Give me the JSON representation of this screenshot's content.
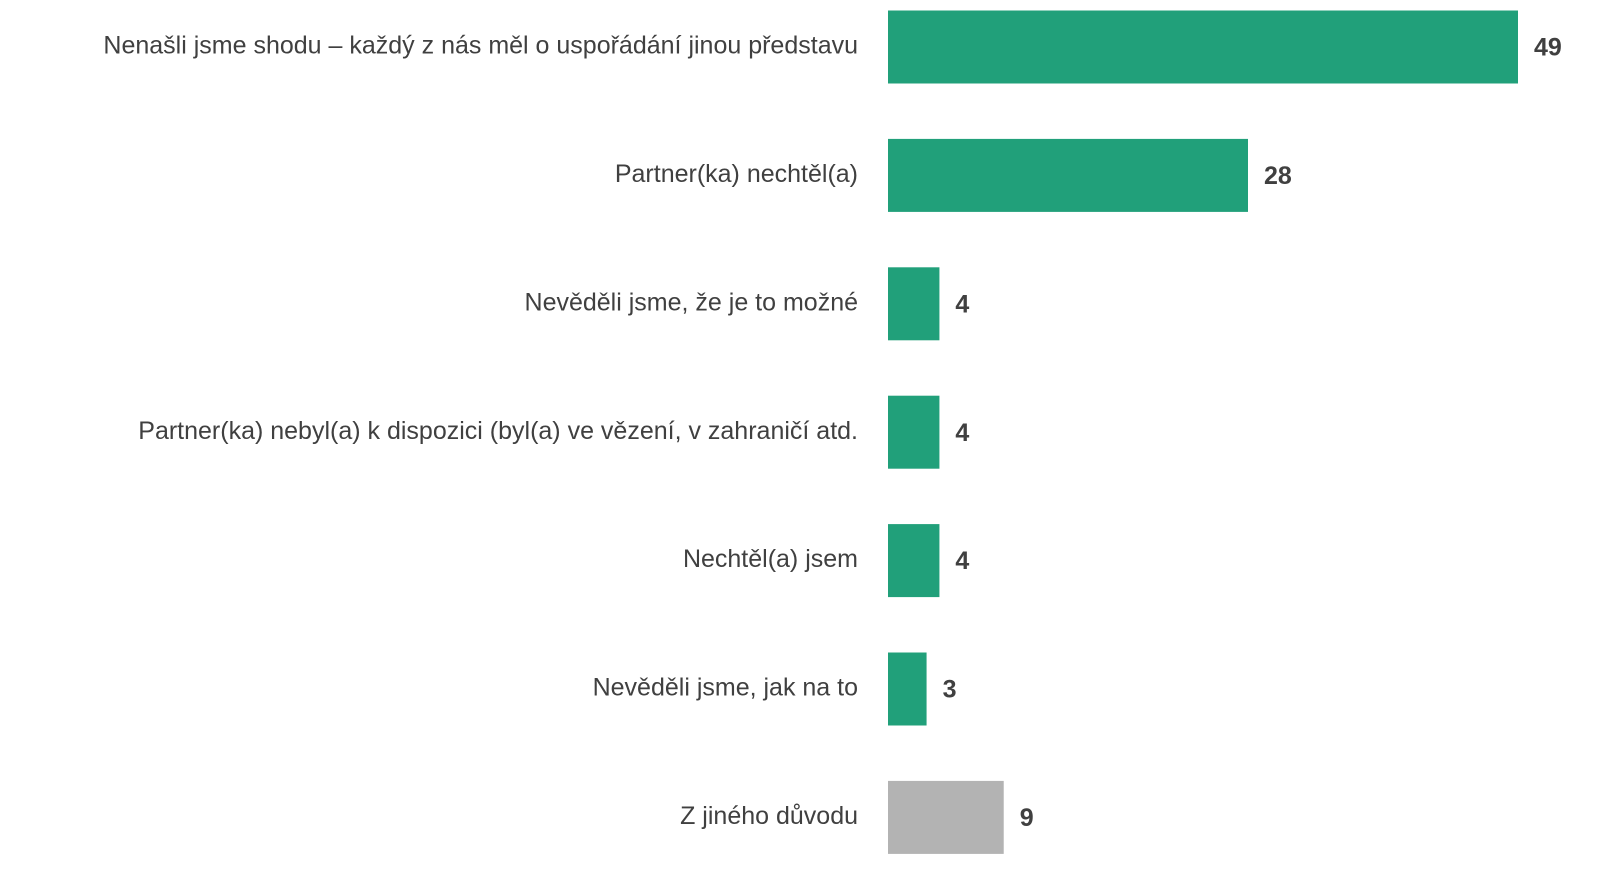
{
  "chart_data": {
    "type": "bar",
    "orientation": "horizontal",
    "categories": [
      "Nenašli jsme shodu – každý z nás měl o uspořádání jinou představu",
      "Partner(ka) nechtěl(a)",
      "Nevěděli jsme, že je to možné",
      "Partner(ka) nebyl(a) k dispozici (byl(a) ve vězení, v zahraničí atd.",
      "Nechtěl(a) jsem",
      "Nevěděli jsme, jak na to",
      "Z jiného důvodu"
    ],
    "values": [
      49,
      28,
      4,
      4,
      4,
      3,
      9
    ],
    "colors": [
      "#21a07a",
      "#21a07a",
      "#21a07a",
      "#21a07a",
      "#21a07a",
      "#21a07a",
      "#b3b3b3"
    ]
  }
}
